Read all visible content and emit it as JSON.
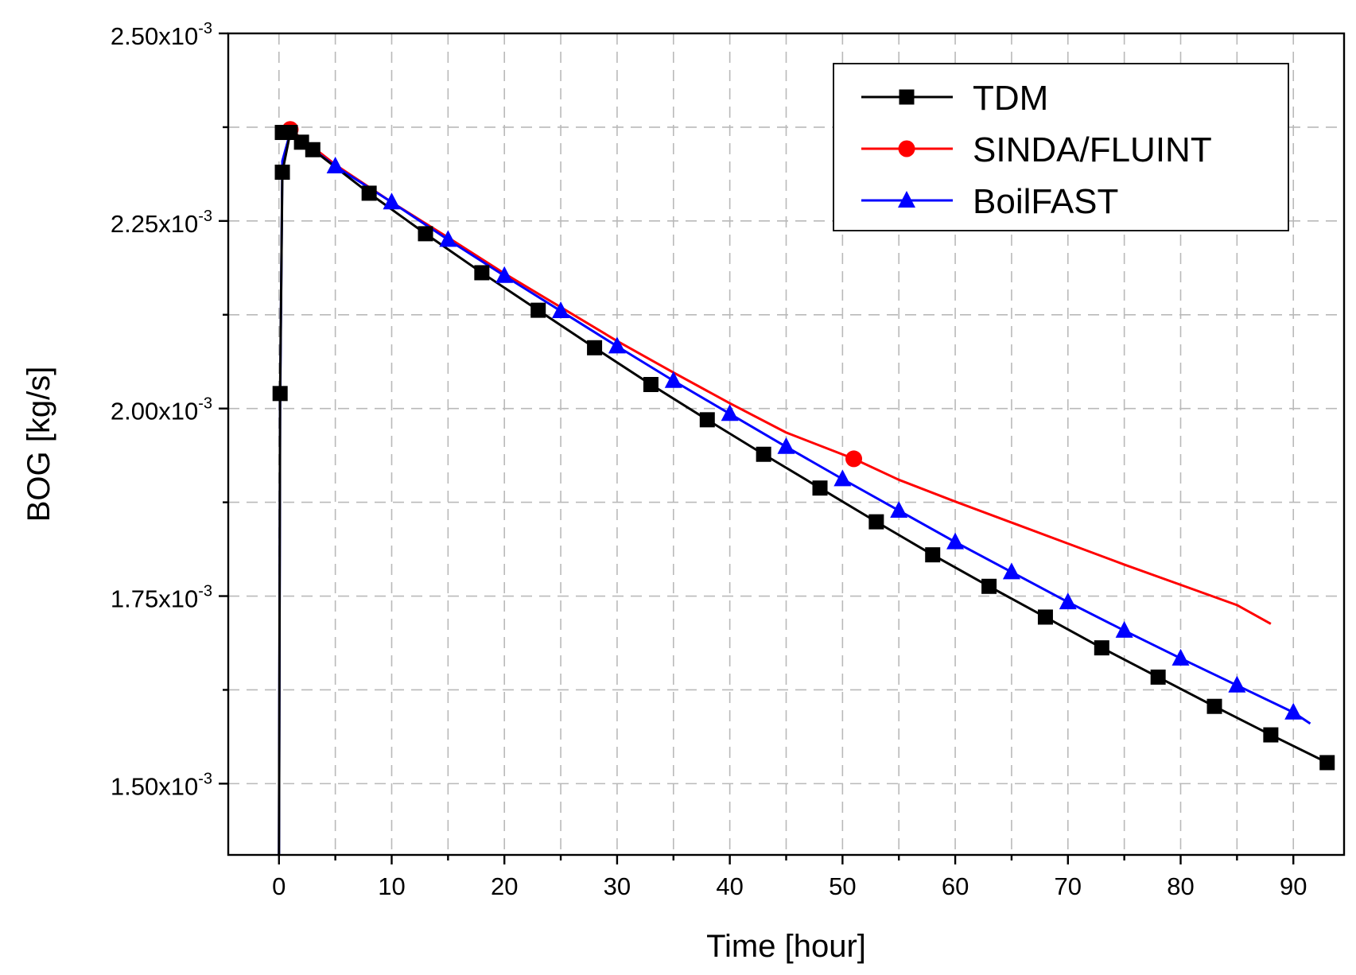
{
  "chart_data": {
    "type": "line",
    "title": "",
    "xlabel": "Time [hour]",
    "ylabel": "BOG [kg/s]",
    "xlim": [
      -4.5,
      94.5
    ],
    "ylim": [
      1.405,
      2.5
    ],
    "y_exponent": "-3",
    "x_ticks": [
      0,
      10,
      20,
      30,
      40,
      50,
      60,
      70,
      80,
      90
    ],
    "x_tick_labels": [
      "0",
      "10",
      "20",
      "30",
      "40",
      "50",
      "60",
      "70",
      "80",
      "90"
    ],
    "y_ticks": [
      1.5,
      1.75,
      2.0,
      2.25,
      2.5
    ],
    "y_tick_labels": [
      "1.50x10",
      "1.75x10",
      "2.00x10",
      "2.25x10",
      "2.50x10"
    ],
    "grid": true,
    "legend_position": "top-right",
    "series": [
      {
        "name": "TDM",
        "color": "#000000",
        "marker": "square",
        "x": [
          0,
          0.1,
          0.3,
          1,
          2,
          3,
          8,
          13,
          18,
          23,
          28,
          33,
          38,
          43,
          48,
          53,
          58,
          63,
          68,
          73,
          78,
          83,
          88,
          93
        ],
        "y": [
          1.405,
          2.02,
          2.315,
          2.368,
          2.355,
          2.345,
          2.287,
          2.233,
          2.181,
          2.131,
          2.081,
          2.032,
          1.985,
          1.939,
          1.894,
          1.849,
          1.805,
          1.763,
          1.722,
          1.681,
          1.642,
          1.603,
          1.565,
          1.528
        ],
        "marker_x": [
          0.1,
          0.3,
          0.3,
          1,
          2,
          3,
          8,
          13,
          18,
          23,
          28,
          33,
          38,
          43,
          48,
          53,
          58,
          63,
          68,
          73,
          78,
          83,
          88,
          93
        ],
        "marker_y": [
          2.02,
          2.315,
          2.368,
          2.368,
          2.355,
          2.345,
          2.287,
          2.233,
          2.181,
          2.131,
          2.081,
          2.032,
          1.985,
          1.939,
          1.894,
          1.849,
          1.805,
          1.763,
          1.722,
          1.681,
          1.642,
          1.603,
          1.565,
          1.528
        ]
      },
      {
        "name": "SINDA/FLUINT",
        "color": "#ff0000",
        "marker": "circle",
        "x": [
          1,
          5,
          10,
          15,
          20,
          25,
          30,
          35,
          40,
          45,
          51,
          55,
          60,
          65,
          70,
          75,
          80,
          85,
          88
        ],
        "y": [
          2.372,
          2.325,
          2.275,
          2.228,
          2.18,
          2.135,
          2.09,
          2.048,
          2.007,
          1.968,
          1.933,
          1.905,
          1.876,
          1.848,
          1.82,
          1.792,
          1.765,
          1.738,
          1.713
        ],
        "marker_x": [
          1,
          51
        ],
        "marker_y": [
          2.372,
          1.933
        ]
      },
      {
        "name": "BoilFAST",
        "color": "#0000ff",
        "marker": "triangle",
        "x": [
          0,
          0.1,
          0.3,
          1,
          5,
          10,
          15,
          20,
          25,
          30,
          35,
          40,
          45,
          50,
          55,
          60,
          65,
          70,
          75,
          80,
          85,
          90,
          91.5
        ],
        "y": [
          1.405,
          2.0,
          2.33,
          2.368,
          2.323,
          2.275,
          2.225,
          2.177,
          2.13,
          2.083,
          2.037,
          1.993,
          1.949,
          1.906,
          1.864,
          1.822,
          1.782,
          1.742,
          1.704,
          1.667,
          1.631,
          1.595,
          1.58
        ],
        "marker_x": [
          5,
          10,
          15,
          20,
          25,
          30,
          35,
          40,
          45,
          50,
          55,
          60,
          65,
          70,
          75,
          80,
          85,
          90
        ],
        "marker_y": [
          2.323,
          2.275,
          2.225,
          2.177,
          2.13,
          2.083,
          2.037,
          1.993,
          1.949,
          1.906,
          1.864,
          1.822,
          1.782,
          1.742,
          1.704,
          1.667,
          1.631,
          1.595
        ]
      }
    ]
  }
}
